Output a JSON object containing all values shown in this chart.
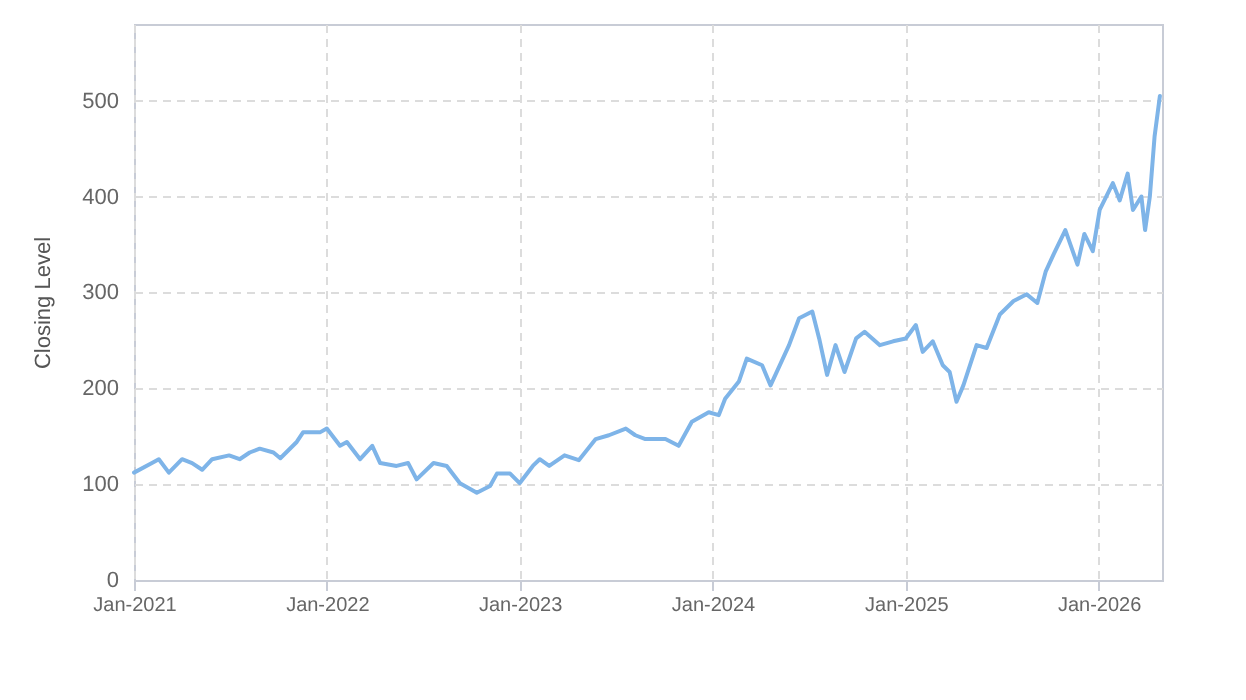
{
  "chart_data": {
    "type": "line",
    "ylabel": "Closing Level",
    "x": [
      "2021-01-01",
      "2021-02-04",
      "2021-02-17",
      "2021-03-08",
      "2021-04-02",
      "2021-04-21",
      "2021-05-10",
      "2021-05-29",
      "2021-06-30",
      "2021-07-20",
      "2021-08-08",
      "2021-08-27",
      "2021-09-22",
      "2021-10-05",
      "2021-11-05",
      "2021-11-17",
      "2021-12-19",
      "2022-01-01",
      "2022-01-26",
      "2022-02-08",
      "2022-03-05",
      "2022-03-28",
      "2022-04-12",
      "2022-05-13",
      "2022-06-04",
      "2022-06-20",
      "2022-07-22",
      "2022-08-16",
      "2022-09-10",
      "2022-10-12",
      "2022-11-06",
      "2022-11-19",
      "2022-12-14",
      "2023-01-01",
      "2023-01-26",
      "2023-02-08",
      "2023-02-26",
      "2023-03-27",
      "2023-04-23",
      "2023-05-25",
      "2023-06-19",
      "2023-07-21",
      "2023-08-08",
      "2023-08-27",
      "2023-10-04",
      "2023-10-29",
      "2023-11-23",
      "2023-12-25",
      "2024-01-13",
      "2024-01-25",
      "2024-02-20",
      "2024-03-06",
      "2024-04-04",
      "2024-04-20",
      "2024-05-25",
      "2024-06-13",
      "2024-07-08",
      "2024-07-21",
      "2024-08-05",
      "2024-08-21",
      "2024-09-07",
      "2024-09-29",
      "2024-10-15",
      "2024-11-13",
      "2024-12-08",
      "2025-01-01",
      "2025-01-20",
      "2025-02-02",
      "2025-02-21",
      "2025-03-12",
      "2025-03-25",
      "2025-04-07",
      "2025-04-20",
      "2025-05-15",
      "2025-06-03",
      "2025-06-28",
      "2025-07-24",
      "2025-08-18",
      "2025-09-07",
      "2025-09-23",
      "2025-10-08",
      "2025-10-30",
      "2025-11-22",
      "2025-12-05",
      "2025-12-21",
      "2026-01-03",
      "2026-01-28",
      "2026-02-10",
      "2026-02-25",
      "2026-03-07",
      "2026-03-23",
      "2026-03-30",
      "2026-04-08",
      "2026-04-17",
      "2026-04-27"
    ],
    "series": [
      {
        "color": "#7eb4e8",
        "values": [
          112,
          122,
          126,
          112,
          126,
          122,
          115,
          126,
          130,
          126,
          133,
          137,
          133,
          127,
          144,
          154,
          154,
          158,
          140,
          144,
          126,
          140,
          122,
          119,
          122,
          105,
          122,
          119,
          101,
          91,
          98,
          111,
          111,
          101,
          119,
          126,
          119,
          130,
          125,
          147,
          151,
          158,
          151,
          147,
          147,
          140,
          165,
          175,
          172,
          189,
          207,
          231,
          224,
          203,
          245,
          273,
          280,
          252,
          214,
          245,
          217,
          252,
          259,
          245,
          249,
          252,
          266,
          238,
          249,
          224,
          217,
          186,
          203,
          245,
          242,
          277,
          291,
          298,
          289,
          322,
          340,
          365,
          329,
          361,
          343,
          386,
          414,
          396,
          424,
          386,
          400,
          365,
          400,
          463,
          505
        ]
      }
    ],
    "xlim": [
      "2021-01-01",
      "2026-05-01"
    ],
    "xticks": [
      {
        "value": "2021-01-01",
        "label": "Jan-2021"
      },
      {
        "value": "2022-01-01",
        "label": "Jan-2022"
      },
      {
        "value": "2023-01-01",
        "label": "Jan-2023"
      },
      {
        "value": "2024-01-01",
        "label": "Jan-2024"
      },
      {
        "value": "2025-01-01",
        "label": "Jan-2025"
      },
      {
        "value": "2026-01-01",
        "label": "Jan-2026"
      }
    ],
    "ylim": [
      0,
      580
    ],
    "yticks": [
      0,
      100,
      200,
      300,
      400,
      500
    ],
    "grid": true,
    "line_style": "solid",
    "marker": "none"
  }
}
